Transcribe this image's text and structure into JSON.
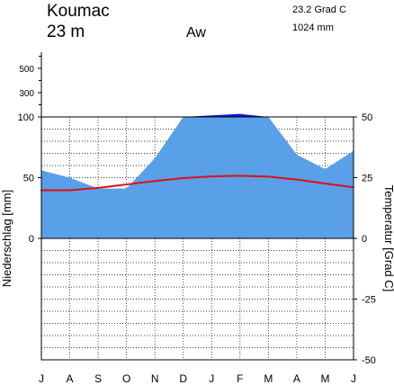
{
  "header": {
    "station": "Koumac",
    "elevation": "23 m",
    "climate_class": "Aw",
    "mean_temperature": "23.2 Grad C",
    "annual_precipitation": "1024 mm"
  },
  "colors": {
    "precip_fill": "#5aa0e8",
    "precip_humid_fill": "#0e1ec8",
    "temperature_line": "#dd1111",
    "frame": "#000000"
  },
  "chart_data": {
    "type": "area",
    "title": "Koumac",
    "x": [
      "J",
      "A",
      "S",
      "O",
      "N",
      "D",
      "J",
      "F",
      "M",
      "A",
      "M",
      "J"
    ],
    "xlabel": "",
    "ylabel_left": "Niederschlag [mm]",
    "ylabel_right": "Temperatur [Grad C]",
    "left_ticks": [
      "0",
      "50",
      "100",
      "300",
      "500"
    ],
    "right_ticks": [
      "-50",
      "-25",
      "0",
      "25",
      "50"
    ],
    "ylim_temperature": [
      -50,
      50
    ],
    "ylim_precipitation": [
      0,
      100
    ],
    "grid": true,
    "series": [
      {
        "name": "Niederschlag",
        "unit": "mm",
        "values": [
          56,
          50,
          41,
          41,
          66,
          100,
          113,
          125,
          100,
          69,
          57,
          72
        ]
      },
      {
        "name": "Temperatur",
        "unit": "Grad C",
        "values": [
          19.8,
          19.8,
          20.8,
          22.2,
          23.6,
          24.8,
          25.5,
          25.8,
          25.4,
          24.2,
          22.6,
          21.0
        ]
      }
    ]
  }
}
